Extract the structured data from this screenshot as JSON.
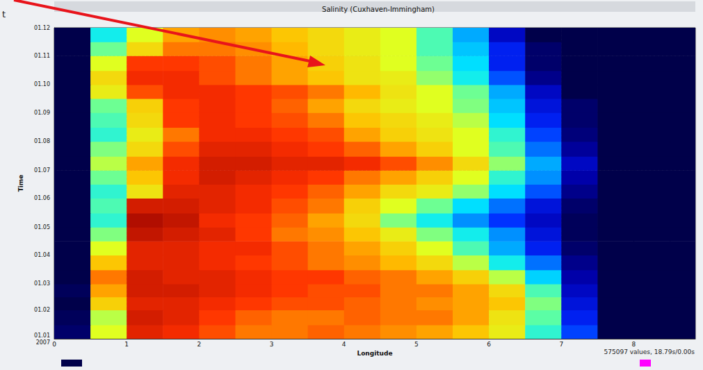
{
  "chart_data": {
    "type": "heatmap",
    "title": "Salinity (Cuxhaven-Immingham)",
    "x_label": "Longitude",
    "y_label": "Time",
    "annotations": [
      {
        "text": "t"
      },
      {
        "text": "575097 values, 18.79s/0.00s"
      }
    ],
    "xlim": [
      0,
      8.85
    ],
    "xticks": [
      0,
      1,
      2,
      3,
      4,
      5,
      6,
      7,
      8
    ],
    "ylim": [
      "2007-01-01",
      "2007-12-01"
    ],
    "yticks": [
      {
        "value": "2007-01-01",
        "label": "01.01\n2007"
      },
      {
        "value": "2007-02-01",
        "label": "01.02"
      },
      {
        "value": "2007-03-01",
        "label": "01.03"
      },
      {
        "value": "2007-04-01",
        "label": "01.04"
      },
      {
        "value": "2007-05-01",
        "label": "01.05"
      },
      {
        "value": "2007-06-01",
        "label": "01.06"
      },
      {
        "value": "2007-07-01",
        "label": "01.07"
      },
      {
        "value": "2007-08-01",
        "label": "01.08"
      },
      {
        "value": "2007-09-01",
        "label": "01.09"
      },
      {
        "value": "2007-10-01",
        "label": "01.10"
      },
      {
        "value": "2007-11-01",
        "label": "01.11"
      },
      {
        "value": "2007-12-01",
        "label": "01.12"
      }
    ],
    "grid": true,
    "colorbar_range": [
      29,
      35
    ],
    "colors": [
      "#00004a",
      "#0000b4",
      "#0028ff",
      "#0090ff",
      "#00e8ff",
      "#60ffa0",
      "#e0ff20",
      "#ffc000",
      "#ff3000",
      "#900000"
    ],
    "cells": {
      "x_edges": [
        0,
        0.5,
        1,
        1.5,
        2,
        2.5,
        3,
        3.5,
        4,
        4.5,
        5,
        5.5,
        6,
        6.5,
        7,
        7.5,
        8,
        8.5,
        8.85
      ],
      "y_edges": [
        "2007-01-01",
        "2007-01-16",
        "2007-02-01",
        "2007-02-15",
        "2007-03-01",
        "2007-03-16",
        "2007-04-01",
        "2007-04-16",
        "2007-05-01",
        "2007-05-16",
        "2007-06-01",
        "2007-06-16",
        "2007-07-01",
        "2007-07-16",
        "2007-08-01",
        "2007-08-16",
        "2007-09-01",
        "2007-09-16",
        "2007-10-01",
        "2007-10-16",
        "2007-11-01",
        "2007-11-16",
        "2007-12-01"
      ],
      "values": [
        [
          29.2,
          33.0,
          34.5,
          34.4,
          34.2,
          34.0,
          34.0,
          34.1,
          34.0,
          33.9,
          33.8,
          33.6,
          33.2,
          32.0,
          30.5,
          29.0,
          29.0,
          29.0
        ],
        [
          29.1,
          32.8,
          34.6,
          34.5,
          34.3,
          34.1,
          34.0,
          34.0,
          34.1,
          34.0,
          34.0,
          33.8,
          33.3,
          32.3,
          30.2,
          29.0,
          29.0,
          29.0
        ],
        [
          29.0,
          33.5,
          34.5,
          34.5,
          34.4,
          34.3,
          34.2,
          34.2,
          34.1,
          34.0,
          33.9,
          33.8,
          33.6,
          32.5,
          30.0,
          29.0,
          29.0,
          29.0
        ],
        [
          29.1,
          33.8,
          34.6,
          34.6,
          34.5,
          34.4,
          34.3,
          34.2,
          34.2,
          34.0,
          34.0,
          33.8,
          33.4,
          32.2,
          29.8,
          29.0,
          29.0,
          29.0
        ],
        [
          29.0,
          34.0,
          34.6,
          34.5,
          34.5,
          34.4,
          34.3,
          34.3,
          34.1,
          34.0,
          33.8,
          33.5,
          32.8,
          31.5,
          29.6,
          29.0,
          29.0,
          29.0
        ],
        [
          29.0,
          33.6,
          34.5,
          34.5,
          34.4,
          34.3,
          34.2,
          34.0,
          33.9,
          33.7,
          33.4,
          32.8,
          31.8,
          30.8,
          29.4,
          29.0,
          29.0,
          29.0
        ],
        [
          29.0,
          33.0,
          34.5,
          34.5,
          34.4,
          34.4,
          34.2,
          34.0,
          33.8,
          33.5,
          33.0,
          32.2,
          31.2,
          30.2,
          29.2,
          29.0,
          29.0,
          29.0
        ],
        [
          29.0,
          32.5,
          34.7,
          34.6,
          34.5,
          34.3,
          34.0,
          33.9,
          33.6,
          33.2,
          32.5,
          31.8,
          31.0,
          30.0,
          29.1,
          29.0,
          29.0,
          29.0
        ],
        [
          29.0,
          32.0,
          34.8,
          34.7,
          34.4,
          34.3,
          34.1,
          33.8,
          33.4,
          32.5,
          31.8,
          31.0,
          30.4,
          29.8,
          29.1,
          29.0,
          29.0,
          29.0
        ],
        [
          29.0,
          32.2,
          34.6,
          34.6,
          34.5,
          34.4,
          34.2,
          34.0,
          33.5,
          33.0,
          32.4,
          31.6,
          30.8,
          30.0,
          29.2,
          29.0,
          29.0,
          29.0
        ],
        [
          29.0,
          32.0,
          33.3,
          34.5,
          34.5,
          34.4,
          34.3,
          34.1,
          33.8,
          33.4,
          33.2,
          32.6,
          31.6,
          30.6,
          29.4,
          29.0,
          29.0,
          29.0
        ],
        [
          29.0,
          32.4,
          33.6,
          34.4,
          34.6,
          34.5,
          34.4,
          34.3,
          34.0,
          33.8,
          33.5,
          33.0,
          32.0,
          31.0,
          29.6,
          29.0,
          29.0,
          29.0
        ],
        [
          29.0,
          32.8,
          33.8,
          34.4,
          34.6,
          34.6,
          34.5,
          34.5,
          34.4,
          34.2,
          33.9,
          33.4,
          32.6,
          31.2,
          29.8,
          29.0,
          29.0,
          29.0
        ],
        [
          29.0,
          32.5,
          33.4,
          34.2,
          34.5,
          34.5,
          34.4,
          34.3,
          34.1,
          33.8,
          33.5,
          33.0,
          32.2,
          30.8,
          29.5,
          29.0,
          29.0,
          29.0
        ],
        [
          29.0,
          32.0,
          33.2,
          34.0,
          34.4,
          34.4,
          34.3,
          34.2,
          33.8,
          33.5,
          33.3,
          33.0,
          32.0,
          30.5,
          29.3,
          29.0,
          29.0,
          29.0
        ],
        [
          29.0,
          32.2,
          33.4,
          34.3,
          34.4,
          34.3,
          34.2,
          34.0,
          33.6,
          33.4,
          33.2,
          32.8,
          31.6,
          30.2,
          29.2,
          29.0,
          29.0,
          29.0
        ],
        [
          29.0,
          32.4,
          33.5,
          34.3,
          34.4,
          34.3,
          34.1,
          33.8,
          33.4,
          33.2,
          33.0,
          32.5,
          31.4,
          30.0,
          29.2,
          29.0,
          29.0,
          29.0
        ],
        [
          29.0,
          33.2,
          34.2,
          34.4,
          34.4,
          34.3,
          34.2,
          34.0,
          33.7,
          33.3,
          33.0,
          32.4,
          31.2,
          29.8,
          29.0,
          29.0,
          29.0,
          29.0
        ],
        [
          29.0,
          33.4,
          34.4,
          34.4,
          34.2,
          34.0,
          33.8,
          33.6,
          33.3,
          33.2,
          32.6,
          31.8,
          30.6,
          29.4,
          29.0,
          29.0,
          29.0,
          29.0
        ],
        [
          29.0,
          33.0,
          34.3,
          34.3,
          34.2,
          34.0,
          33.8,
          33.5,
          33.3,
          33.0,
          32.4,
          31.6,
          30.2,
          29.2,
          29.0,
          29.0,
          29.0,
          29.0
        ],
        [
          29.0,
          32.4,
          33.4,
          34.0,
          34.0,
          33.9,
          33.7,
          33.4,
          33.2,
          33.0,
          32.2,
          31.4,
          30.2,
          29.2,
          29.0,
          29.0,
          29.0,
          29.0
        ],
        [
          29.0,
          31.8,
          33.0,
          33.8,
          33.9,
          33.8,
          33.6,
          33.4,
          33.2,
          33.0,
          32.2,
          31.2,
          29.8,
          29.0,
          29.0,
          29.0,
          29.0,
          29.0
        ]
      ]
    }
  }
}
